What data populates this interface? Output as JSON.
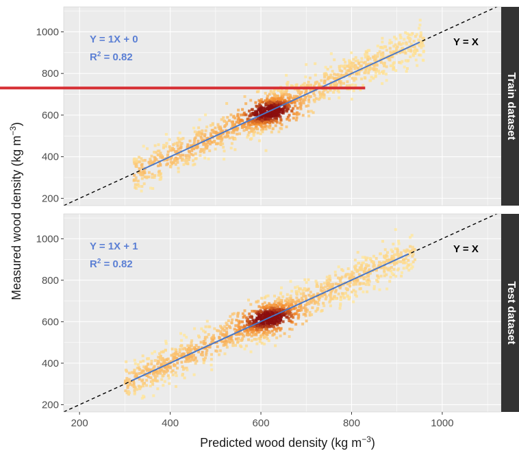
{
  "colors": {
    "panel_bg": "#ebebeb",
    "grid": "#ffffff",
    "strip_bg": "#333333",
    "fit_line": "#4a78c9",
    "equation_text": "#5b7fd4",
    "identity_line": "#000000",
    "highlight_line": "#d62e33",
    "density_low": "#ffe8a0",
    "density_mid": "#f28a2c",
    "density_high": "#8b0e0e"
  },
  "chart_data": {
    "type": "scatter",
    "style": "hexbin density, faceted",
    "xlabel": "Predicted wood density (kg m",
    "xlabel_sup": "−3",
    "xlabel_suffix": ")",
    "ylabel": "Measured wood density (kg m",
    "ylabel_sup": "−3",
    "ylabel_suffix": ")",
    "xlim": [
      165,
      1130
    ],
    "ylim": [
      165,
      1120
    ],
    "x_ticks": [
      "200",
      "400",
      "600",
      "800",
      "1000"
    ],
    "y_ticks": [
      "200",
      "400",
      "600",
      "800",
      "1000"
    ],
    "grid": true,
    "identity_label": "Y = X",
    "panels": [
      {
        "strip": "Train dataset",
        "equation": "Y = 1X + 0",
        "r2_prefix": "R",
        "r2_sup": "2",
        "r2_value": " = 0.82",
        "fit": {
          "slope": 1,
          "intercept": 0,
          "x_start": 340,
          "x_end": 950
        },
        "density_core": {
          "x": 620,
          "y": 615
        },
        "x_range": [
          320,
          960
        ],
        "highlight_y": 730,
        "highlight_x_end": 830
      },
      {
        "strip": "Test dataset",
        "equation": "Y = 1X + 1",
        "r2_prefix": "R",
        "r2_sup": "2",
        "r2_value": " = 0.82",
        "fit": {
          "slope": 1,
          "intercept": 1,
          "x_start": 315,
          "x_end": 925
        },
        "density_core": {
          "x": 620,
          "y": 615
        },
        "x_range": [
          300,
          940
        ]
      }
    ]
  }
}
